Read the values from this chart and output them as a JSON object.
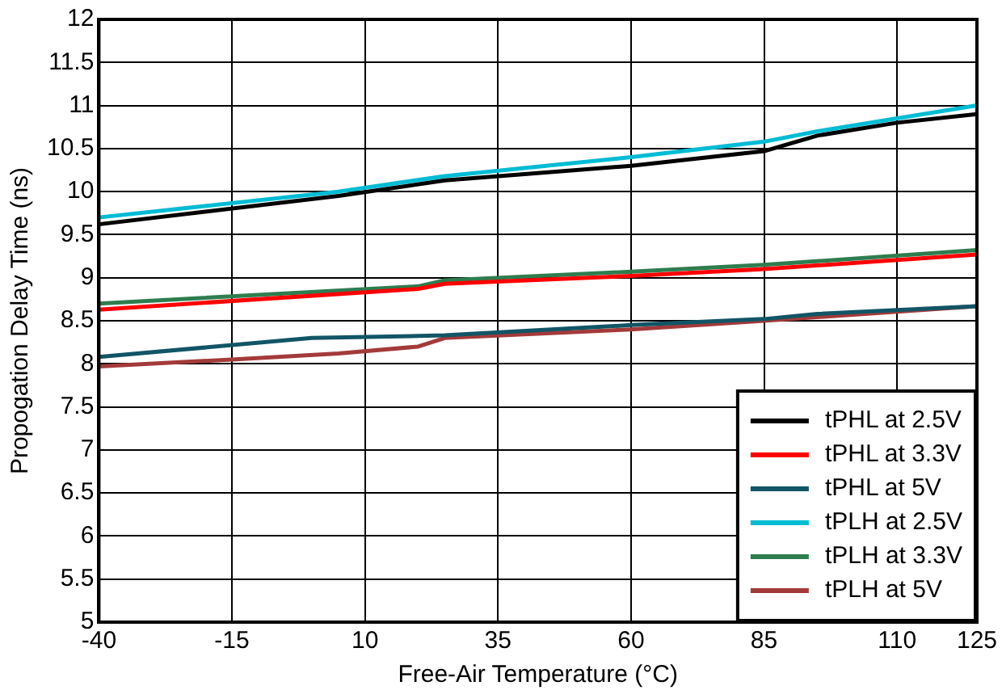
{
  "chart_data": {
    "type": "line",
    "xlabel": "Free-Air Temperature (°C)",
    "ylabel": "Propogation Delay Time (ns)",
    "xlim": [
      -40,
      125
    ],
    "xticks": [
      -40,
      -15,
      10,
      35,
      60,
      85,
      110,
      125
    ],
    "ylim": [
      5,
      12
    ],
    "yticks": [
      5,
      5.5,
      6,
      6.5,
      7,
      7.5,
      8,
      8.5,
      9,
      9.5,
      10,
      10.5,
      11,
      11.5,
      12
    ],
    "grid": true,
    "legend": "bottom right",
    "marker": "none",
    "line_style": "solid",
    "series": [
      {
        "name": "tPHL at 2.5V",
        "color": "#000000",
        "x": [
          -40,
          5,
          25,
          60,
          85,
          95,
          110,
          125
        ],
        "values": [
          9.62,
          9.95,
          10.13,
          10.3,
          10.47,
          10.65,
          10.8,
          10.9
        ]
      },
      {
        "name": "tPHL at 3.3V",
        "color": "#ff0000",
        "x": [
          -40,
          20,
          25,
          60,
          85,
          125
        ],
        "values": [
          8.63,
          8.87,
          8.93,
          9.02,
          9.1,
          9.27
        ]
      },
      {
        "name": "tPHL at 5V",
        "color": "#115566",
        "x": [
          -40,
          0,
          25,
          60,
          85,
          95,
          125
        ],
        "values": [
          8.08,
          8.3,
          8.33,
          8.45,
          8.52,
          8.58,
          8.67
        ]
      },
      {
        "name": "tPLH at 2.5V",
        "color": "#00bcd4",
        "x": [
          -40,
          5,
          25,
          60,
          85,
          95,
          110,
          125
        ],
        "values": [
          9.7,
          10.0,
          10.18,
          10.4,
          10.58,
          10.7,
          10.85,
          11.0
        ]
      },
      {
        "name": "tPLH at 3.3V",
        "color": "#2e7d4f",
        "x": [
          -40,
          20,
          25,
          60,
          85,
          125
        ],
        "values": [
          8.7,
          8.9,
          8.97,
          9.07,
          9.15,
          9.32
        ]
      },
      {
        "name": "tPLH at 5V",
        "color": "#a33a3a",
        "x": [
          -40,
          -15,
          5,
          20,
          25,
          60,
          85,
          125
        ],
        "values": [
          7.97,
          8.05,
          8.12,
          8.2,
          8.3,
          8.4,
          8.5,
          8.67
        ]
      }
    ]
  }
}
